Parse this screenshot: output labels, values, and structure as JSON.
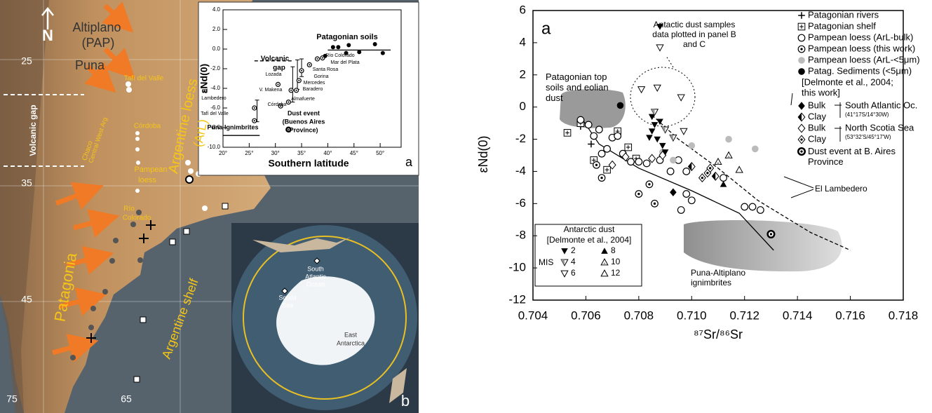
{
  "chart_data": [
    {
      "type": "scatter",
      "xlabel": "Southern latitude",
      "ylabel": "εNd(0)",
      "xlim": [
        20,
        54
      ],
      "ylim": [
        -10,
        4
      ],
      "xticks": [
        {
          "value": 20,
          "label": "20°"
        },
        {
          "value": 25,
          "label": "25°"
        },
        {
          "value": 30,
          "label": "30°"
        },
        {
          "value": 35,
          "label": "35°"
        },
        {
          "value": 40,
          "label": "40°"
        },
        {
          "value": 45,
          "label": "45°"
        },
        {
          "value": 50,
          "label": "50°"
        }
      ],
      "yticks": [
        {
          "value": 4,
          "label": "4.0"
        },
        {
          "value": 2,
          "label": "2.0"
        },
        {
          "value": 0,
          "label": "0.0"
        },
        {
          "value": -2,
          "label": "-2.0"
        },
        {
          "value": -4,
          "label": "-4.0"
        },
        {
          "value": -6,
          "label": "-6.0"
        },
        {
          "value": -8,
          "label": "-8.0"
        },
        {
          "value": -10,
          "label": "-10.0"
        }
      ],
      "series": [
        {
          "marker": "circledot",
          "color": "#000000",
          "x": [
            26,
            26,
            30.5,
            31,
            33,
            32.5,
            34.5,
            34,
            35,
            36.5,
            38,
            39
          ],
          "y": [
            -7.3,
            -6.0,
            -3.6,
            -5.8,
            -4.2,
            -5.4,
            -3.2,
            -4.2,
            -2.2,
            -1.6,
            -1.0,
            -0.9
          ]
        },
        {
          "marker": "filledcircle",
          "color": "#000000",
          "x": [
            39.5,
            41,
            42,
            43.5,
            44,
            46,
            49,
            50.5
          ],
          "y": [
            -0.7,
            0.2,
            0.2,
            -0.4,
            0.4,
            -0.3,
            0.5,
            -0.4
          ]
        },
        {
          "marker": "bullseye",
          "color": "#000000",
          "x": [
            32.5
          ],
          "y": [
            -8.2
          ]
        }
      ],
      "error_bars": {
        "x": [
          26.5,
          33.3,
          34.2,
          35
        ],
        "y": [
          -6.3,
          -3.6,
          -2.6,
          -1.9
        ],
        "err": [
          1.1,
          1.8,
          1.5,
          0.9
        ]
      },
      "trend_lines": [
        {
          "x": [
            26,
            33.5
          ],
          "y": [
            -1.2,
            -1.2
          ],
          "dashed": true
        },
        {
          "x": [
            40,
            52
          ],
          "y": [
            -0.1,
            -0.1
          ],
          "dashed": false
        },
        {
          "x": [
            20,
            27
          ],
          "y": [
            -8.8,
            -8.8
          ],
          "dashed": false
        }
      ],
      "annotations": [
        "Patagonian soils",
        "Volcanic",
        "gap",
        "Puna Ignimbrites",
        "Dust event",
        "(Buenos Aires",
        "Province)",
        "Río Colorado",
        "Mar del Plata",
        "Santa Rosa",
        "Gorina",
        "Mercedes",
        "Baradero",
        "Lozada",
        "V. Makena",
        "Almafuerte",
        "Córdoba",
        "El",
        "Lambedero",
        "Tafí del Valle",
        "a"
      ]
    },
    {
      "type": "scatter",
      "xlabel": "⁸⁷Sr/⁸⁶Sr",
      "ylabel": "εNd(0)",
      "xlim": [
        0.704,
        0.718
      ],
      "ylim": [
        -12,
        6
      ],
      "xticks": [
        0.704,
        0.706,
        0.708,
        {
          "value": 0.71,
          "label": "0.710"
        },
        0.712,
        0.714,
        0.716,
        0.718
      ],
      "yticks": [
        6,
        4,
        2,
        0,
        -2,
        -4,
        -6,
        -8,
        -10,
        -12
      ],
      "series": [
        {
          "name": "Patagonian rivers",
          "marker": "plus",
          "color": "#000000",
          "x": [
            0.7058,
            0.7062
          ],
          "y": [
            -1.2,
            -2.3
          ]
        },
        {
          "name": "Patagonian shelf",
          "marker": "boxplus",
          "color": "#000000",
          "x": [
            0.7053,
            0.7058,
            0.7063,
            0.7068,
            0.7072,
            0.7076,
            0.7079
          ],
          "y": [
            -1.6,
            -1.0,
            -3.3,
            -3.9,
            -1.5,
            -2.5,
            -3.2
          ]
        },
        {
          "name": "Pampean loess (ArL-bulk)",
          "marker": "circle",
          "color": "#000000",
          "x": [
            0.7058,
            0.7061,
            0.7063,
            0.7065,
            0.7066,
            0.7068,
            0.707,
            0.7072,
            0.7074,
            0.7077,
            0.708,
            0.7083,
            0.7088,
            0.7092,
            0.7095,
            0.7098,
            0.7096,
            0.7098,
            0.71,
            0.7112,
            0.712,
            0.7123,
            0.7126
          ],
          "y": [
            -0.8,
            -1.1,
            -1.8,
            -1.4,
            -2.9,
            -2.6,
            -1.9,
            -1.8,
            -2.9,
            -3.4,
            -3.4,
            -3.5,
            -3.3,
            -4.0,
            -3.3,
            -4.0,
            -6.4,
            -5.4,
            -5.8,
            -4.4,
            -6.2,
            -6.2,
            -6.4
          ]
        },
        {
          "name": "Pampean loess (this work)",
          "marker": "circledot",
          "color": "#000000",
          "x": [
            0.7064,
            0.7066,
            0.708,
            0.7084,
            0.7086
          ],
          "y": [
            -3.6,
            -4.4,
            -5.4,
            -4.8,
            -6.0
          ]
        },
        {
          "name": "Pampean loess (ArL-<5μm)",
          "marker": "filledcircle",
          "color": "#bbbbbb",
          "x": [
            0.7089,
            0.7093,
            0.71,
            0.7114,
            0.7124
          ],
          "y": [
            -2.8,
            -3.3,
            -2.4,
            -2.0,
            -2.6
          ]
        },
        {
          "name": "Patag. Sediments (<5μm)",
          "marker": "filledcircle",
          "color": "#000000",
          "x": [
            0.7073
          ],
          "y": [
            0.1
          ]
        },
        {
          "name": "Bulk",
          "marker": "filled-diamond",
          "color": "#000000",
          "x": [
            0.7093
          ],
          "y": [
            -5.3
          ]
        },
        {
          "name": "Clay",
          "marker": "half-diamond",
          "color": "#000000",
          "x": [
            0.71,
            0.7109
          ],
          "y": [
            -3.7,
            -4.3
          ]
        },
        {
          "name": "Bulk",
          "marker": "diamond",
          "color": "#000000",
          "x": [
            0.707,
            0.7075,
            0.7085,
            0.7089
          ],
          "y": [
            -3.6,
            -3.1,
            -3.2,
            -3.0
          ]
        },
        {
          "name": "Clay",
          "marker": "dotted-diamond",
          "color": "#000000",
          "x": [
            0.7104,
            0.7106,
            0.7107
          ],
          "y": [
            -4.4,
            -4.1,
            -3.8
          ]
        },
        {
          "name": "Dust event at B. Aires Province",
          "marker": "bullseye",
          "color": "#000000",
          "x": [
            0.713
          ],
          "y": [
            -7.9
          ]
        }
      ],
      "legend_notes": [
        "[Delmonte et al., 2004;",
        "this work]"
      ],
      "legend_groups": [
        {
          "label": "South Atlantic Oc.",
          "sublabel": "(41°17S/14°30W)"
        },
        {
          "label": "North Scotia Sea",
          "sublabel": "(53°32'S/45°17'W)"
        }
      ],
      "antarctic_dust": {
        "title": "Antarctic dust",
        "reference": "[Delmonte et al., 2004]",
        "label": "MIS",
        "series": [
          {
            "name": "2",
            "marker": "filled-down",
            "color": "#000000",
            "x": [
              0.7088,
              0.7085,
              0.7088,
              0.7085,
              0.7087,
              0.7089,
              0.7084,
              0.709,
              0.7086
            ],
            "y": [
              5.0,
              -0.6,
              -0.9,
              -1.5,
              -2.0,
              -2.4,
              -1.9,
              -2.8,
              -1.1
            ]
          },
          {
            "name": "4",
            "marker": "half-down",
            "color": "#000000",
            "x": [
              0.7086,
              0.709,
              0.7093
            ],
            "y": [
              -0.3,
              -1.4,
              -1.9
            ]
          },
          {
            "name": "6",
            "marker": "down",
            "color": "#000000",
            "x": [
              0.7088,
              0.7081,
              0.7087,
              0.7096,
              0.7097
            ],
            "y": [
              3.7,
              1.1,
              1.2,
              0.6,
              -1.5
            ]
          },
          {
            "name": "8",
            "marker": "filled-up",
            "color": "#000000",
            "x": [
              0.7112
            ],
            "y": [
              -4.8
            ]
          },
          {
            "name": "10",
            "marker": "half-up",
            "color": "#000000",
            "x": [
              0.711,
              0.7114
            ],
            "y": [
              -3.4,
              -3.0
            ]
          },
          {
            "name": "12",
            "marker": "up",
            "color": "#000000",
            "x": [
              0.7118
            ],
            "y": [
              -3.9
            ]
          }
        ]
      },
      "trend_lines": [
        {
          "x": [
            0.7058,
            0.7065,
            0.708,
            0.71,
            0.7118,
            0.7131
          ],
          "y": [
            -0.6,
            -2.3,
            -3.8,
            -5.2,
            -6.6,
            -8.9
          ],
          "dashed": false
        },
        {
          "x": [
            0.7085,
            0.7095,
            0.711,
            0.7125,
            0.7145,
            0.716
          ],
          "y": [
            -0.5,
            -2.0,
            -3.8,
            -5.8,
            -7.8,
            -8.9
          ],
          "dashed": true
        }
      ],
      "annotations": [
        "a",
        "Antactic dust samples data plotted in panel B and C",
        "Patagonian top soils and eolian dust",
        "Puna-Altiplano ignimbrites",
        "El Lambedero"
      ]
    }
  ],
  "map": {
    "labels": [
      "N",
      "Altiplano",
      "(PAP)",
      "Puna",
      "Tafí del Valle",
      "Volcanic gap",
      "Chaco",
      "Central West Arg",
      "Córdoba",
      "Argentine loess",
      "(ArL)",
      "Pampean",
      "loess",
      "Río",
      "Colorado",
      "Patagonia",
      "Argentine shelf",
      "25",
      "35",
      "45",
      "75",
      "65",
      "b"
    ],
    "inset_labels": [
      "South",
      "Atlantic",
      "Ocean",
      "Scotia",
      "Sea",
      "East",
      "Antarctica"
    ]
  }
}
